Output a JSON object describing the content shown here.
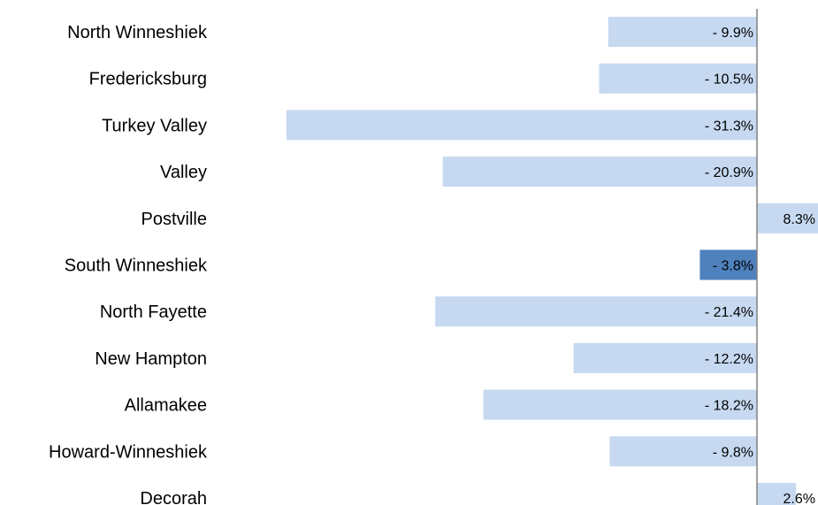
{
  "chart_data": {
    "type": "bar",
    "orientation": "horizontal",
    "categories": [
      "North Winneshiek",
      "Fredericksburg",
      "Turkey Valley",
      "Valley",
      "Postville",
      "South Winneshiek",
      "North Fayette",
      "New Hampton",
      "Allamakee",
      "Howard-Winneshiek",
      "Decorah"
    ],
    "values": [
      -9.9,
      -10.5,
      -31.3,
      -20.9,
      8.3,
      -3.8,
      -21.4,
      -12.2,
      -18.2,
      -9.8,
      2.6
    ],
    "value_labels": [
      "- 9.9%",
      "- 10.5%",
      "- 31.3%",
      "- 20.9%",
      "8.3%",
      "- 3.8%",
      "- 21.4%",
      "- 12.2%",
      "- 18.2%",
      "- 9.8%",
      "2.6%"
    ],
    "highlight_category": "South Winneshiek",
    "bar_color": "#c6d9f1",
    "highlight_color": "#4f81bd",
    "axis_color": "#808080",
    "grid": false,
    "legend": "none"
  }
}
